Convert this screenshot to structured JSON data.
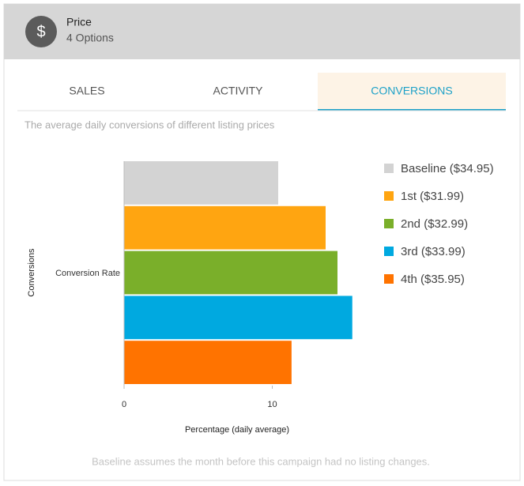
{
  "header": {
    "icon": "$",
    "title": "Price",
    "subtitle": "4 Options"
  },
  "tabs": [
    "SALES",
    "ACTIVITY",
    "CONVERSIONS"
  ],
  "active_tab": 2,
  "description": "The average daily conversions of different listing prices",
  "chart_data": {
    "type": "hbar",
    "categories": [
      "Conversion Rate"
    ],
    "series": [
      {
        "name": "Baseline ($34.95)",
        "color": "#d3d3d3",
        "values": [
          10.4
        ]
      },
      {
        "name": "1st ($31.99)",
        "color": "#ffa511",
        "values": [
          13.6
        ]
      },
      {
        "name": "2nd ($32.99)",
        "color": "#7aaf2a",
        "values": [
          14.4
        ]
      },
      {
        "name": "3rd ($33.99)",
        "color": "#00a9e0",
        "values": [
          15.4
        ]
      },
      {
        "name": "4th ($35.95)",
        "color": "#ff7300",
        "values": [
          11.3
        ]
      }
    ],
    "xlim": [
      0,
      16
    ],
    "xticks": [
      0,
      10
    ],
    "xlabel": "Percentage (daily average)",
    "ylabel": "Conversions",
    "legend": "right"
  },
  "footnote": "Baseline assumes the month before this campaign had no listing changes."
}
